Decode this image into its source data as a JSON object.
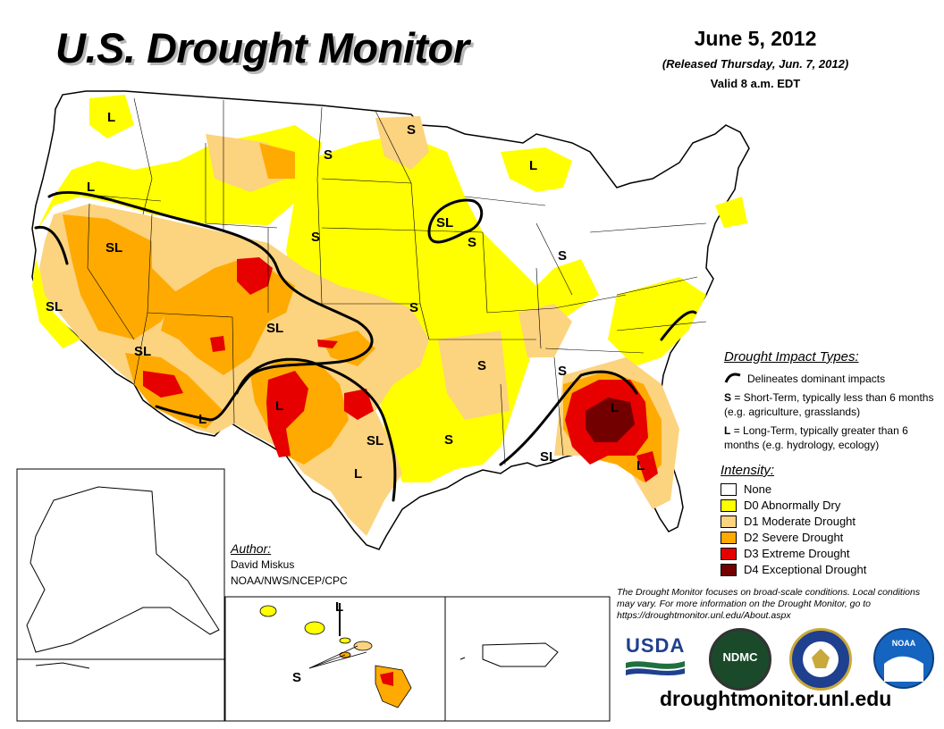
{
  "title": "U.S. Drought Monitor",
  "date": "June 5, 2012",
  "released": "(Released Thursday, Jun. 7, 2012)",
  "valid": "Valid 8 a.m. EDT",
  "impact_types": {
    "heading": "Drought Impact Types:",
    "delineates": "Delineates dominant impacts",
    "short_term_key": "S",
    "short_term_text": "= Short-Term, typically less than 6 months (e.g. agriculture, grasslands)",
    "long_term_key": "L",
    "long_term_text": "= Long-Term, typically greater than 6 months (e.g. hydrology, ecology)"
  },
  "intensity": {
    "heading": "Intensity:",
    "levels": [
      {
        "label": "None",
        "color": "#ffffff"
      },
      {
        "label": "D0 Abnormally Dry",
        "color": "#ffff00"
      },
      {
        "label": "D1 Moderate Drought",
        "color": "#fcd37f"
      },
      {
        "label": "D2 Severe Drought",
        "color": "#ffaa00"
      },
      {
        "label": "D3 Extreme Drought",
        "color": "#e60000"
      },
      {
        "label": "D4 Exceptional Drought",
        "color": "#730000"
      }
    ]
  },
  "author": {
    "heading": "Author:",
    "name": "David Miskus",
    "affiliation": "NOAA/NWS/NCEP/CPC"
  },
  "disclaimer": "The Drought Monitor focuses on broad-scale conditions. Local conditions may vary. For more information on the Drought Monitor, go to https://droughtmonitor.unl.edu/About.aspx",
  "website": "droughtmonitor.unl.edu",
  "logos": {
    "usda": "USDA",
    "ndmc": "NDMC",
    "noaa": "NOAA"
  },
  "map_labels": {
    "pacific_nw": "L",
    "oregon": "L",
    "montana": "S",
    "minnesota": "S",
    "michigan": "L",
    "great_basin": "SL",
    "california": "SL",
    "colorado": "S",
    "iowa_wisc": "SL",
    "illinois": "S",
    "ohio": "S",
    "kansas": "S",
    "four_corners": "SL",
    "arizona": "SL",
    "new_mexico": "L",
    "west_texas": "L",
    "arkansas": "S",
    "tennessee": "S",
    "east_texas": "SL",
    "mississippi": "S",
    "south_texas": "L",
    "georgia": "L",
    "gulf_coast": "SL",
    "florida": "L",
    "hawaii_l": "L",
    "hawaii_s": "S"
  }
}
